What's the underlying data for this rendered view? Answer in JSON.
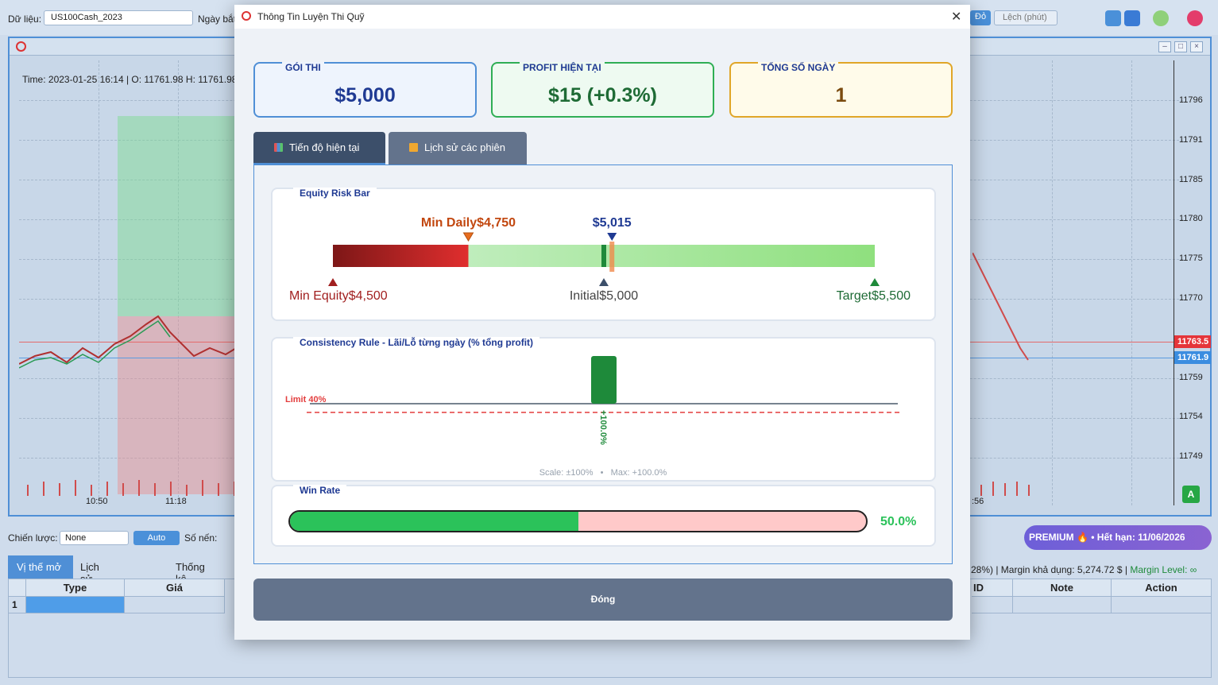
{
  "app": {
    "data_label": "Dữ liệu:",
    "data_value": "US100Cash_2023",
    "date_label": "Ngày bắt",
    "red_btn": "Đỏ",
    "lech_btn": "Lệch (phút)",
    "chart_info": "Time: 2023-01-25 16:14 | O: 11761.98 H: 11761.98",
    "y_ticks": [
      "11796",
      "11791",
      "11785",
      "11780",
      "11775",
      "11770",
      "11759",
      "11754",
      "11749"
    ],
    "price_tag_red": "11763.5",
    "price_tag_blue": "11761.9",
    "x_ticks": [
      "10:50",
      "11:18",
      ":56"
    ],
    "badge": "A",
    "strategy_label": "Chiến lược:",
    "strategy_value": "None",
    "auto_btn": "Auto",
    "candles_label": "Số nến:",
    "premium": "PREMIUM 🔥 • Hết hạn: 11/06/2026",
    "bottom_tabs": [
      "Vị thế mở",
      "Lịch sử giao dịch",
      "Thống kê"
    ],
    "margin_prefix": "28%) | Margin khả dụng: 5,274.72 $ | ",
    "margin_level": "Margin Level: ∞",
    "table_headers_left": [
      "Type",
      "Giá"
    ],
    "table_headers_right": [
      "ID",
      "Note",
      "Action"
    ],
    "row_num": "1"
  },
  "modal": {
    "title": "Thông Tin Luyện Thi Quỹ",
    "cards": [
      {
        "label": "GÓI THI",
        "value": "$5,000",
        "color": "#1f3a93"
      },
      {
        "label": "PROFIT HIỆN TẠI",
        "value": "$15 (+0.3%)",
        "color": "#1e6b35"
      },
      {
        "label": "TỔNG SỐ NGÀY",
        "value": "1",
        "color": "#7a4a0f"
      }
    ],
    "tabs": [
      {
        "label": "Tiến độ hiện tại",
        "active": true
      },
      {
        "label": "Lịch sử các phiên",
        "active": false
      }
    ],
    "equity": {
      "title": "Equity Risk Bar",
      "min_daily": "Min Daily$4,750",
      "current": "$5,015",
      "min_equity": "Min Equity$4,500",
      "initial": "Initial$5,000",
      "target": "Target$5,500",
      "min_value": 4500,
      "min_daily_value": 4750,
      "initial_value": 5000,
      "current_value": 5015,
      "target_value": 5500
    },
    "consistency": {
      "title": "Consistency Rule - Lãi/Lỗ từng ngày (% tổng profit)",
      "limit_label": "Limit 40%",
      "bar_label": "+100.0%",
      "footer": "Scale: ±100%   •   Max: +100.0%",
      "limit_pct": 40,
      "bar_pct": 100
    },
    "winrate": {
      "title": "Win Rate",
      "value_text": "50.0%",
      "pct": 50
    },
    "close_label": "Đóng"
  }
}
